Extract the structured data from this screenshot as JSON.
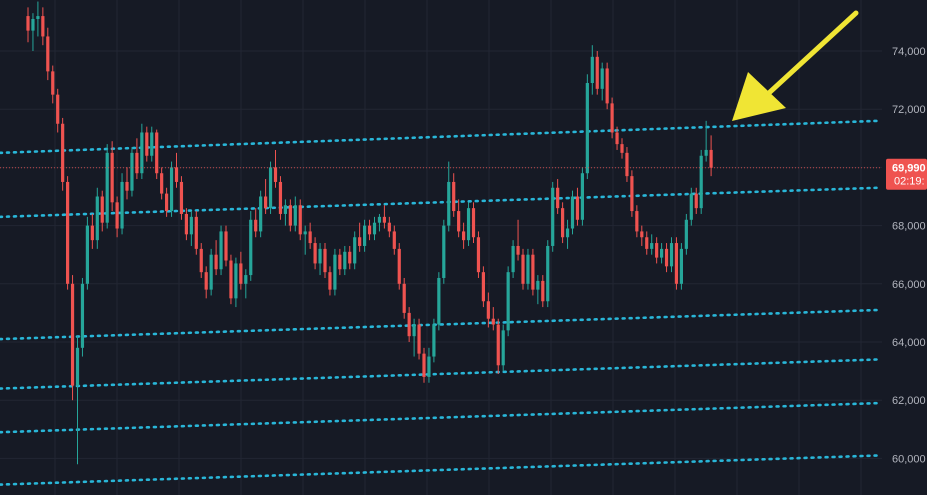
{
  "theme": {
    "background": "#161a25",
    "grid": "#222633",
    "up_color": "#26a69a",
    "down_color": "#ef5350",
    "trendline_color": "#29b6d8",
    "arrow_color": "#f0e534",
    "price_line_color": "#ef5350",
    "axis_text_color": "#b2b5be"
  },
  "price_axis": {
    "tick_labels": [
      "74,000",
      "72,000",
      "70,000",
      "68,000",
      "66,000",
      "64,000",
      "62,000",
      "60,000"
    ]
  },
  "last_price": {
    "value_label": "69,990",
    "countdown_label": "02:19:"
  },
  "chart_data": {
    "type": "candlestick",
    "ylim": [
      59000,
      76000
    ],
    "y_ticks": [
      74000,
      72000,
      70000,
      68000,
      66000,
      64000,
      62000,
      60000
    ],
    "last_price": 69990,
    "candles_ohlc": [
      [
        75200,
        75500,
        74300,
        74700
      ],
      [
        74700,
        75300,
        74000,
        75100
      ],
      [
        75100,
        75700,
        74500,
        75200
      ],
      [
        75200,
        75500,
        74200,
        74500
      ],
      [
        74500,
        74800,
        73000,
        73300
      ],
      [
        73300,
        73500,
        72200,
        72500
      ],
      [
        72500,
        72700,
        71200,
        71500
      ],
      [
        71500,
        71700,
        69200,
        69500
      ],
      [
        69500,
        69700,
        65800,
        66000
      ],
      [
        66000,
        66300,
        62000,
        62500
      ],
      [
        62500,
        64200,
        59800,
        63800
      ],
      [
        63800,
        66200,
        63500,
        66000
      ],
      [
        66000,
        68300,
        65800,
        68000
      ],
      [
        68000,
        68400,
        67200,
        67500
      ],
      [
        67500,
        69300,
        67200,
        69000
      ],
      [
        69000,
        69200,
        67800,
        68100
      ],
      [
        68100,
        70800,
        67900,
        70500
      ],
      [
        70500,
        70900,
        68500,
        68800
      ],
      [
        68800,
        69000,
        67600,
        67900
      ],
      [
        67900,
        69800,
        67700,
        69500
      ],
      [
        69500,
        70000,
        68900,
        69200
      ],
      [
        69200,
        70700,
        69000,
        70500
      ],
      [
        70500,
        71000,
        69600,
        69800
      ],
      [
        69800,
        71500,
        69600,
        71200
      ],
      [
        71200,
        71400,
        70200,
        70400
      ],
      [
        70400,
        71400,
        70200,
        71200
      ],
      [
        71200,
        71300,
        69600,
        69800
      ],
      [
        69800,
        70000,
        68900,
        69100
      ],
      [
        69100,
        69300,
        68300,
        68500
      ],
      [
        68500,
        70200,
        68300,
        70000
      ],
      [
        70000,
        70500,
        69300,
        69500
      ],
      [
        69500,
        69700,
        68200,
        68400
      ],
      [
        68400,
        68600,
        67500,
        67700
      ],
      [
        67700,
        68500,
        67300,
        68300
      ],
      [
        68300,
        68500,
        67000,
        67200
      ],
      [
        67200,
        67400,
        66200,
        66400
      ],
      [
        66400,
        66600,
        65500,
        65800
      ],
      [
        65800,
        67200,
        65600,
        67000
      ],
      [
        67000,
        67500,
        66300,
        66500
      ],
      [
        66500,
        68000,
        66300,
        67800
      ],
      [
        67800,
        68000,
        66600,
        66800
      ],
      [
        66800,
        67000,
        65300,
        65500
      ],
      [
        65500,
        66900,
        65200,
        66700
      ],
      [
        66700,
        67100,
        65800,
        66000
      ],
      [
        66000,
        66500,
        65500,
        66300
      ],
      [
        66300,
        68500,
        66100,
        68200
      ],
      [
        68200,
        68600,
        67600,
        67800
      ],
      [
        67800,
        69200,
        67600,
        69000
      ],
      [
        69000,
        69600,
        68400,
        68600
      ],
      [
        68600,
        70200,
        68400,
        70000
      ],
      [
        70000,
        70600,
        69300,
        69500
      ],
      [
        69500,
        69700,
        68200,
        68400
      ],
      [
        68400,
        68900,
        68000,
        68700
      ],
      [
        68700,
        68900,
        67800,
        68000
      ],
      [
        68000,
        69000,
        67800,
        68700
      ],
      [
        68700,
        68900,
        67500,
        67700
      ],
      [
        67700,
        68000,
        67000,
        67800
      ],
      [
        67800,
        68100,
        67200,
        67400
      ],
      [
        67400,
        67600,
        66500,
        66700
      ],
      [
        66700,
        67400,
        66300,
        67200
      ],
      [
        67200,
        67400,
        66200,
        66400
      ],
      [
        66400,
        66600,
        65600,
        65800
      ],
      [
        65800,
        67200,
        65600,
        67000
      ],
      [
        67000,
        67200,
        66300,
        66500
      ],
      [
        66500,
        67300,
        66300,
        67100
      ],
      [
        67100,
        67300,
        66500,
        66700
      ],
      [
        66700,
        67800,
        66500,
        67600
      ],
      [
        67600,
        68100,
        67100,
        67300
      ],
      [
        67300,
        68200,
        67100,
        68000
      ],
      [
        68000,
        68200,
        67500,
        67700
      ],
      [
        67700,
        68300,
        67500,
        68100
      ],
      [
        68100,
        68400,
        67800,
        68300
      ],
      [
        68300,
        68700,
        67900,
        68100
      ],
      [
        68100,
        68300,
        67600,
        67800
      ],
      [
        67800,
        68000,
        67000,
        67200
      ],
      [
        67200,
        67400,
        65800,
        66000
      ],
      [
        66000,
        66200,
        64800,
        65000
      ],
      [
        65000,
        65200,
        64000,
        64200
      ],
      [
        64200,
        64800,
        63500,
        64600
      ],
      [
        64600,
        64800,
        63400,
        63600
      ],
      [
        63600,
        63800,
        62600,
        62800
      ],
      [
        62800,
        63800,
        62600,
        63500
      ],
      [
        63500,
        64800,
        63300,
        64600
      ],
      [
        64600,
        66400,
        64400,
        66200
      ],
      [
        66200,
        68200,
        66000,
        68000
      ],
      [
        68000,
        70200,
        67800,
        69500
      ],
      [
        69500,
        69800,
        68300,
        68500
      ],
      [
        68500,
        68900,
        67600,
        67800
      ],
      [
        67800,
        68100,
        67200,
        67500
      ],
      [
        67500,
        68800,
        67300,
        68600
      ],
      [
        68600,
        68800,
        67400,
        67600
      ],
      [
        67600,
        67800,
        66200,
        66400
      ],
      [
        66400,
        66600,
        65200,
        65400
      ],
      [
        65400,
        65700,
        64500,
        64800
      ],
      [
        64800,
        65200,
        64400,
        64600
      ],
      [
        64600,
        64800,
        62900,
        63200
      ],
      [
        63200,
        64600,
        63000,
        64400
      ],
      [
        64400,
        66600,
        64200,
        66400
      ],
      [
        66400,
        67500,
        66200,
        67300
      ],
      [
        67300,
        68200,
        66800,
        67000
      ],
      [
        67000,
        67200,
        65800,
        66000
      ],
      [
        66000,
        67200,
        65800,
        67000
      ],
      [
        67000,
        67200,
        65600,
        65800
      ],
      [
        65800,
        66300,
        65300,
        66100
      ],
      [
        66100,
        66300,
        65200,
        65400
      ],
      [
        65400,
        67500,
        65200,
        67300
      ],
      [
        67300,
        69500,
        67100,
        69300
      ],
      [
        69300,
        69600,
        68400,
        68600
      ],
      [
        68600,
        68800,
        67400,
        67600
      ],
      [
        67600,
        68200,
        67200,
        67900
      ],
      [
        67900,
        69200,
        67700,
        69000
      ],
      [
        69000,
        69300,
        68000,
        68200
      ],
      [
        68200,
        70000,
        68000,
        69800
      ],
      [
        69800,
        73200,
        69600,
        72900
      ],
      [
        72900,
        74200,
        72500,
        73800
      ],
      [
        73800,
        74000,
        72500,
        72700
      ],
      [
        72700,
        73600,
        72300,
        73400
      ],
      [
        73400,
        73600,
        72000,
        72200
      ],
      [
        72200,
        72400,
        71000,
        71200
      ],
      [
        71200,
        71400,
        70600,
        70800
      ],
      [
        70800,
        71000,
        70300,
        70500
      ],
      [
        70500,
        70700,
        69500,
        69700
      ],
      [
        69700,
        69900,
        68300,
        68500
      ],
      [
        68500,
        68700,
        67600,
        67800
      ],
      [
        67800,
        68000,
        67300,
        67600
      ],
      [
        67600,
        67800,
        67000,
        67200
      ],
      [
        67200,
        67700,
        67000,
        67400
      ],
      [
        67400,
        67600,
        66700,
        66900
      ],
      [
        66900,
        67400,
        66700,
        67200
      ],
      [
        67200,
        67400,
        66400,
        66600
      ],
      [
        66600,
        67600,
        66400,
        67400
      ],
      [
        67400,
        67600,
        65800,
        66000
      ],
      [
        66000,
        67400,
        65800,
        67200
      ],
      [
        67200,
        68400,
        67000,
        68200
      ],
      [
        68200,
        69300,
        68000,
        69100
      ],
      [
        69100,
        69300,
        68400,
        68600
      ],
      [
        68600,
        70600,
        68400,
        70400
      ],
      [
        70400,
        71600,
        70200,
        70600
      ],
      [
        70600,
        71100,
        69700,
        69990
      ]
    ],
    "trendlines": [
      {
        "x": [
          0,
          148
        ],
        "y": [
          70500,
          71600
        ]
      },
      {
        "x": [
          0,
          148
        ],
        "y": [
          68300,
          69300
        ]
      },
      {
        "x": [
          0,
          148
        ],
        "y": [
          64100,
          65100
        ]
      },
      {
        "x": [
          0,
          148
        ],
        "y": [
          62400,
          63400
        ]
      },
      {
        "x": [
          0,
          148
        ],
        "y": [
          60900,
          61900
        ]
      },
      {
        "x": [
          0,
          148
        ],
        "y": [
          59100,
          60100
        ]
      }
    ]
  }
}
